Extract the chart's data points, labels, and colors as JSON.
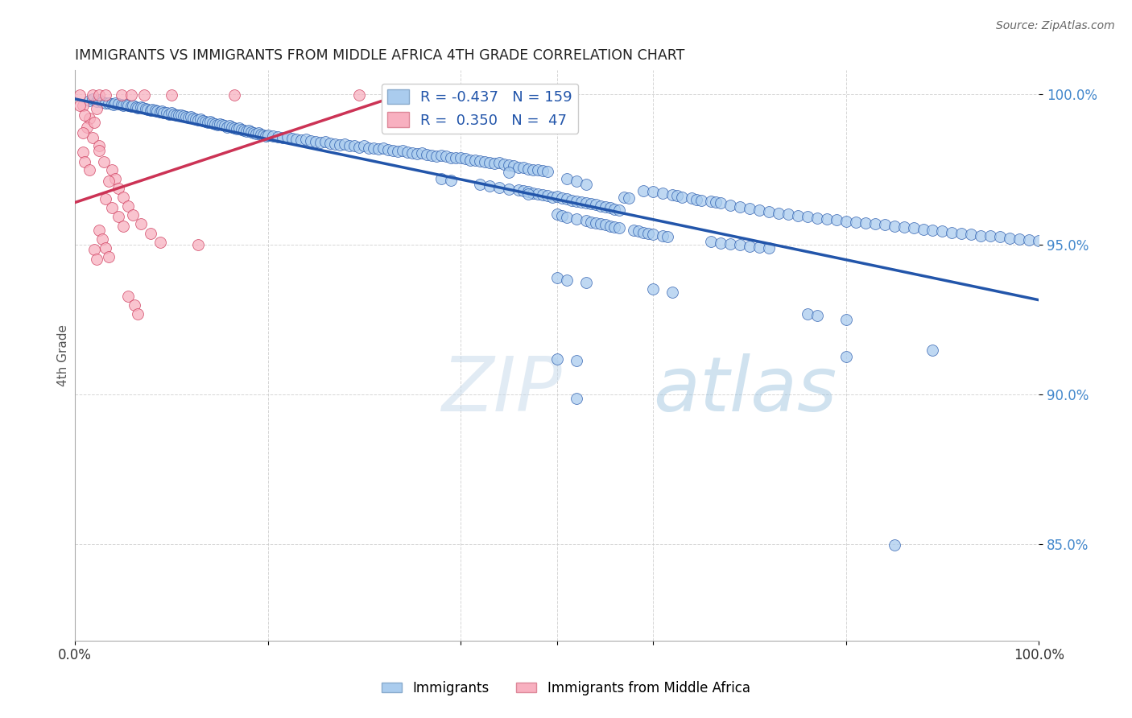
{
  "title": "IMMIGRANTS VS IMMIGRANTS FROM MIDDLE AFRICA 4TH GRADE CORRELATION CHART",
  "source": "Source: ZipAtlas.com",
  "ylabel": "4th Grade",
  "xlim": [
    0.0,
    1.0
  ],
  "ylim": [
    0.818,
    1.008
  ],
  "yticks": [
    0.85,
    0.9,
    0.95,
    1.0
  ],
  "ytick_labels": [
    "85.0%",
    "90.0%",
    "95.0%",
    "100.0%"
  ],
  "color_blue": "#aaccee",
  "color_pink": "#f8b0c0",
  "trendline_blue": "#2255aa",
  "trendline_pink": "#cc3355",
  "watermark_zip": "ZIP",
  "watermark_atlas": "atlas",
  "blue_trendline": [
    [
      0.0,
      0.9985
    ],
    [
      1.0,
      0.9315
    ]
  ],
  "pink_trendline": [
    [
      0.0,
      0.964
    ],
    [
      0.32,
      0.998
    ]
  ],
  "blue_points": [
    [
      0.015,
      0.998
    ],
    [
      0.018,
      0.9985
    ],
    [
      0.022,
      0.9978
    ],
    [
      0.025,
      0.9982
    ],
    [
      0.028,
      0.9975
    ],
    [
      0.032,
      0.997
    ],
    [
      0.035,
      0.9972
    ],
    [
      0.038,
      0.9968
    ],
    [
      0.04,
      0.9965
    ],
    [
      0.042,
      0.997
    ],
    [
      0.045,
      0.9968
    ],
    [
      0.048,
      0.9966
    ],
    [
      0.05,
      0.9963
    ],
    [
      0.053,
      0.9965
    ],
    [
      0.055,
      0.9962
    ],
    [
      0.058,
      0.996
    ],
    [
      0.06,
      0.9962
    ],
    [
      0.063,
      0.9958
    ],
    [
      0.065,
      0.9955
    ],
    [
      0.068,
      0.9958
    ],
    [
      0.07,
      0.9955
    ],
    [
      0.073,
      0.9953
    ],
    [
      0.075,
      0.995
    ],
    [
      0.078,
      0.9948
    ],
    [
      0.08,
      0.995
    ],
    [
      0.083,
      0.9948
    ],
    [
      0.085,
      0.9945
    ],
    [
      0.088,
      0.9942
    ],
    [
      0.09,
      0.9945
    ],
    [
      0.092,
      0.994
    ],
    [
      0.095,
      0.9938
    ],
    [
      0.098,
      0.9935
    ],
    [
      0.1,
      0.9938
    ],
    [
      0.103,
      0.9935
    ],
    [
      0.105,
      0.9932
    ],
    [
      0.108,
      0.993
    ],
    [
      0.11,
      0.9932
    ],
    [
      0.113,
      0.9928
    ],
    [
      0.115,
      0.9925
    ],
    [
      0.118,
      0.9922
    ],
    [
      0.12,
      0.9925
    ],
    [
      0.123,
      0.992
    ],
    [
      0.125,
      0.9918
    ],
    [
      0.128,
      0.9915
    ],
    [
      0.13,
      0.9918
    ],
    [
      0.133,
      0.9912
    ],
    [
      0.135,
      0.991
    ],
    [
      0.138,
      0.9908
    ],
    [
      0.14,
      0.991
    ],
    [
      0.143,
      0.9905
    ],
    [
      0.145,
      0.9902
    ],
    [
      0.148,
      0.99
    ],
    [
      0.15,
      0.9902
    ],
    [
      0.153,
      0.9898
    ],
    [
      0.155,
      0.9895
    ],
    [
      0.158,
      0.9892
    ],
    [
      0.16,
      0.9895
    ],
    [
      0.163,
      0.989
    ],
    [
      0.165,
      0.9888
    ],
    [
      0.168,
      0.9885
    ],
    [
      0.17,
      0.9888
    ],
    [
      0.173,
      0.9882
    ],
    [
      0.175,
      0.988
    ],
    [
      0.178,
      0.9878
    ],
    [
      0.18,
      0.988
    ],
    [
      0.183,
      0.9875
    ],
    [
      0.185,
      0.9872
    ],
    [
      0.188,
      0.987
    ],
    [
      0.19,
      0.9872
    ],
    [
      0.193,
      0.9868
    ],
    [
      0.195,
      0.9865
    ],
    [
      0.198,
      0.9862
    ],
    [
      0.2,
      0.9865
    ],
    [
      0.205,
      0.986
    ],
    [
      0.21,
      0.9858
    ],
    [
      0.215,
      0.9855
    ],
    [
      0.22,
      0.9858
    ],
    [
      0.225,
      0.9852
    ],
    [
      0.23,
      0.985
    ],
    [
      0.235,
      0.9848
    ],
    [
      0.24,
      0.985
    ],
    [
      0.245,
      0.9845
    ],
    [
      0.25,
      0.9842
    ],
    [
      0.255,
      0.984
    ],
    [
      0.26,
      0.9843
    ],
    [
      0.265,
      0.9838
    ],
    [
      0.27,
      0.9835
    ],
    [
      0.275,
      0.9832
    ],
    [
      0.28,
      0.9835
    ],
    [
      0.285,
      0.983
    ],
    [
      0.29,
      0.9828
    ],
    [
      0.295,
      0.9825
    ],
    [
      0.3,
      0.9828
    ],
    [
      0.305,
      0.9822
    ],
    [
      0.31,
      0.982
    ],
    [
      0.315,
      0.9818
    ],
    [
      0.32,
      0.982
    ],
    [
      0.325,
      0.9815
    ],
    [
      0.33,
      0.9812
    ],
    [
      0.335,
      0.981
    ],
    [
      0.34,
      0.9812
    ],
    [
      0.345,
      0.9808
    ],
    [
      0.35,
      0.9805
    ],
    [
      0.355,
      0.9802
    ],
    [
      0.36,
      0.9805
    ],
    [
      0.365,
      0.98
    ],
    [
      0.37,
      0.9798
    ],
    [
      0.375,
      0.9795
    ],
    [
      0.38,
      0.9798
    ],
    [
      0.385,
      0.9793
    ],
    [
      0.39,
      0.979
    ],
    [
      0.395,
      0.9788
    ],
    [
      0.4,
      0.979
    ],
    [
      0.405,
      0.9785
    ],
    [
      0.41,
      0.9782
    ],
    [
      0.415,
      0.978
    ],
    [
      0.42,
      0.9778
    ],
    [
      0.425,
      0.9775
    ],
    [
      0.43,
      0.9772
    ],
    [
      0.435,
      0.977
    ],
    [
      0.44,
      0.9772
    ],
    [
      0.445,
      0.9768
    ],
    [
      0.45,
      0.9765
    ],
    [
      0.455,
      0.9762
    ],
    [
      0.46,
      0.9758
    ],
    [
      0.465,
      0.9756
    ],
    [
      0.47,
      0.9752
    ],
    [
      0.475,
      0.975
    ],
    [
      0.48,
      0.9748
    ],
    [
      0.485,
      0.9745
    ],
    [
      0.49,
      0.9742
    ],
    [
      0.38,
      0.972
    ],
    [
      0.39,
      0.9715
    ],
    [
      0.42,
      0.97
    ],
    [
      0.43,
      0.9695
    ],
    [
      0.44,
      0.969
    ],
    [
      0.45,
      0.9685
    ],
    [
      0.46,
      0.9682
    ],
    [
      0.465,
      0.9678
    ],
    [
      0.47,
      0.9675
    ],
    [
      0.475,
      0.9672
    ],
    [
      0.48,
      0.9668
    ],
    [
      0.485,
      0.9665
    ],
    [
      0.49,
      0.9662
    ],
    [
      0.495,
      0.9658
    ],
    [
      0.5,
      0.966
    ],
    [
      0.505,
      0.9655
    ],
    [
      0.51,
      0.9652
    ],
    [
      0.515,
      0.9648
    ],
    [
      0.52,
      0.9645
    ],
    [
      0.525,
      0.9642
    ],
    [
      0.53,
      0.9638
    ],
    [
      0.535,
      0.9635
    ],
    [
      0.54,
      0.9632
    ],
    [
      0.545,
      0.9628
    ],
    [
      0.55,
      0.9625
    ],
    [
      0.555,
      0.9622
    ],
    [
      0.56,
      0.9618
    ],
    [
      0.565,
      0.9615
    ],
    [
      0.57,
      0.9658
    ],
    [
      0.575,
      0.9655
    ],
    [
      0.59,
      0.968
    ],
    [
      0.6,
      0.9675
    ],
    [
      0.61,
      0.967
    ],
    [
      0.62,
      0.9665
    ],
    [
      0.625,
      0.9662
    ],
    [
      0.63,
      0.9658
    ],
    [
      0.64,
      0.9655
    ],
    [
      0.645,
      0.965
    ],
    [
      0.65,
      0.9648
    ],
    [
      0.66,
      0.9645
    ],
    [
      0.665,
      0.9642
    ],
    [
      0.67,
      0.9638
    ],
    [
      0.5,
      0.96
    ],
    [
      0.505,
      0.9595
    ],
    [
      0.51,
      0.959
    ],
    [
      0.52,
      0.9585
    ],
    [
      0.53,
      0.958
    ],
    [
      0.535,
      0.9575
    ],
    [
      0.54,
      0.9572
    ],
    [
      0.545,
      0.9568
    ],
    [
      0.55,
      0.9565
    ],
    [
      0.555,
      0.956
    ],
    [
      0.56,
      0.9558
    ],
    [
      0.565,
      0.9555
    ],
    [
      0.58,
      0.9548
    ],
    [
      0.585,
      0.9545
    ],
    [
      0.59,
      0.954
    ],
    [
      0.595,
      0.9538
    ],
    [
      0.6,
      0.9535
    ],
    [
      0.61,
      0.953
    ],
    [
      0.615,
      0.9525
    ],
    [
      0.45,
      0.974
    ],
    [
      0.51,
      0.972
    ],
    [
      0.52,
      0.971
    ],
    [
      0.53,
      0.97
    ],
    [
      0.47,
      0.9668
    ],
    [
      0.68,
      0.963
    ],
    [
      0.69,
      0.9625
    ],
    [
      0.7,
      0.962
    ],
    [
      0.71,
      0.9615
    ],
    [
      0.72,
      0.961
    ],
    [
      0.73,
      0.9605
    ],
    [
      0.74,
      0.96
    ],
    [
      0.75,
      0.9595
    ],
    [
      0.76,
      0.9592
    ],
    [
      0.77,
      0.9588
    ],
    [
      0.78,
      0.9585
    ],
    [
      0.79,
      0.9582
    ],
    [
      0.8,
      0.9578
    ],
    [
      0.81,
      0.9575
    ],
    [
      0.82,
      0.9572
    ],
    [
      0.83,
      0.9568
    ],
    [
      0.84,
      0.9565
    ],
    [
      0.85,
      0.956
    ],
    [
      0.86,
      0.9558
    ],
    [
      0.87,
      0.9555
    ],
    [
      0.88,
      0.955
    ],
    [
      0.89,
      0.9548
    ],
    [
      0.9,
      0.9545
    ],
    [
      0.91,
      0.954
    ],
    [
      0.92,
      0.9538
    ],
    [
      0.93,
      0.9535
    ],
    [
      0.94,
      0.953
    ],
    [
      0.95,
      0.9528
    ],
    [
      0.96,
      0.9525
    ],
    [
      0.97,
      0.952
    ],
    [
      0.98,
      0.9518
    ],
    [
      0.99,
      0.9515
    ],
    [
      1.0,
      0.9512
    ],
    [
      0.66,
      0.951
    ],
    [
      0.67,
      0.9505
    ],
    [
      0.68,
      0.9502
    ],
    [
      0.69,
      0.9498
    ],
    [
      0.7,
      0.9495
    ],
    [
      0.71,
      0.949
    ],
    [
      0.72,
      0.9488
    ],
    [
      0.5,
      0.9388
    ],
    [
      0.51,
      0.9382
    ],
    [
      0.53,
      0.9372
    ],
    [
      0.6,
      0.9352
    ],
    [
      0.62,
      0.9342
    ],
    [
      0.76,
      0.9268
    ],
    [
      0.77,
      0.9262
    ],
    [
      0.8,
      0.925
    ],
    [
      0.89,
      0.9148
    ],
    [
      0.5,
      0.9118
    ],
    [
      0.52,
      0.9112
    ],
    [
      0.8,
      0.9125
    ],
    [
      0.52,
      0.8988
    ],
    [
      0.85,
      0.8498
    ]
  ],
  "pink_points": [
    [
      0.005,
      0.9998
    ],
    [
      0.018,
      0.9998
    ],
    [
      0.025,
      0.9998
    ],
    [
      0.032,
      0.9998
    ],
    [
      0.048,
      0.9998
    ],
    [
      0.058,
      0.9998
    ],
    [
      0.072,
      0.9998
    ],
    [
      0.1,
      0.9998
    ],
    [
      0.165,
      0.9998
    ],
    [
      0.295,
      0.9998
    ],
    [
      0.008,
      0.9962
    ],
    [
      0.022,
      0.9952
    ],
    [
      0.015,
      0.992
    ],
    [
      0.012,
      0.989
    ],
    [
      0.018,
      0.9855
    ],
    [
      0.025,
      0.9828
    ],
    [
      0.008,
      0.9808
    ],
    [
      0.01,
      0.9775
    ],
    [
      0.015,
      0.9748
    ],
    [
      0.005,
      0.9962
    ],
    [
      0.01,
      0.9932
    ],
    [
      0.02,
      0.9908
    ],
    [
      0.008,
      0.9872
    ],
    [
      0.025,
      0.9812
    ],
    [
      0.03,
      0.9775
    ],
    [
      0.038,
      0.9748
    ],
    [
      0.042,
      0.9718
    ],
    [
      0.045,
      0.9688
    ],
    [
      0.035,
      0.9712
    ],
    [
      0.05,
      0.9658
    ],
    [
      0.055,
      0.9628
    ],
    [
      0.06,
      0.9598
    ],
    [
      0.032,
      0.9652
    ],
    [
      0.038,
      0.9622
    ],
    [
      0.045,
      0.9592
    ],
    [
      0.05,
      0.9562
    ],
    [
      0.025,
      0.9548
    ],
    [
      0.028,
      0.9518
    ],
    [
      0.032,
      0.9488
    ],
    [
      0.035,
      0.9458
    ],
    [
      0.02,
      0.9482
    ],
    [
      0.022,
      0.9452
    ],
    [
      0.068,
      0.9568
    ],
    [
      0.078,
      0.9538
    ],
    [
      0.088,
      0.9508
    ],
    [
      0.128,
      0.9498
    ],
    [
      0.055,
      0.9328
    ],
    [
      0.062,
      0.9298
    ],
    [
      0.065,
      0.9268
    ]
  ]
}
